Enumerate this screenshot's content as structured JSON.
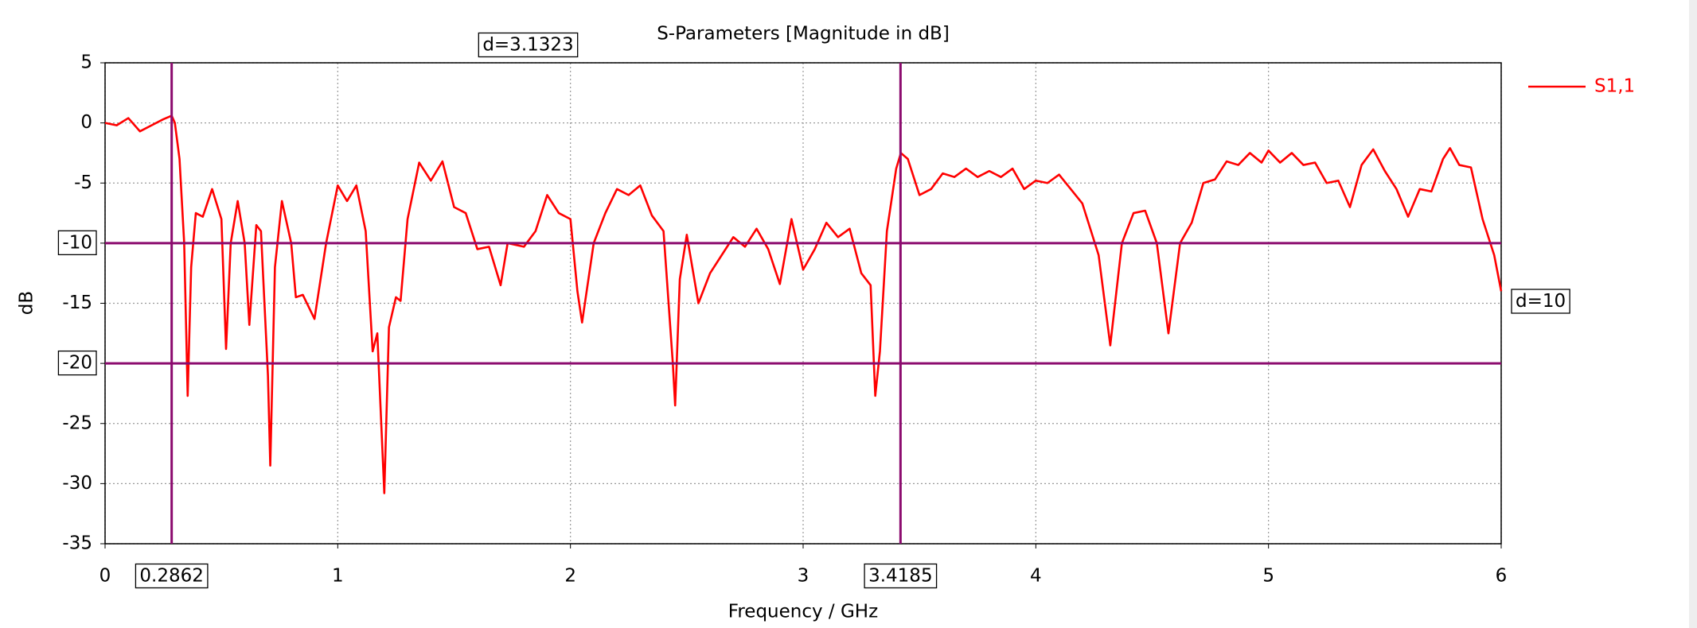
{
  "chart_data": {
    "type": "line",
    "title": "S-Parameters [Magnitude in dB]",
    "xlabel": "Frequency / GHz",
    "ylabel": "dB",
    "xlim": [
      0,
      6
    ],
    "ylim": [
      -35,
      5
    ],
    "xticks": [
      0,
      1,
      2,
      3,
      4,
      5,
      6
    ],
    "yticks": [
      5,
      0,
      -5,
      -10,
      -15,
      -20,
      -25,
      -30,
      -35
    ],
    "grid": true,
    "legend": "right",
    "x": [
      0,
      0.05,
      0.1,
      0.15,
      0.2,
      0.25,
      0.2862,
      0.3,
      0.32,
      0.34,
      0.355,
      0.37,
      0.39,
      0.42,
      0.46,
      0.5,
      0.52,
      0.54,
      0.57,
      0.6,
      0.62,
      0.65,
      0.67,
      0.7,
      0.71,
      0.73,
      0.76,
      0.8,
      0.82,
      0.85,
      0.9,
      0.95,
      1.0,
      1.04,
      1.08,
      1.12,
      1.15,
      1.17,
      1.2,
      1.22,
      1.25,
      1.27,
      1.3,
      1.35,
      1.4,
      1.45,
      1.5,
      1.55,
      1.6,
      1.65,
      1.7,
      1.73,
      1.8,
      1.85,
      1.9,
      1.95,
      2.0,
      2.03,
      2.05,
      2.1,
      2.15,
      2.2,
      2.25,
      2.3,
      2.35,
      2.4,
      2.44,
      2.45,
      2.47,
      2.5,
      2.55,
      2.6,
      2.65,
      2.7,
      2.75,
      2.8,
      2.85,
      2.9,
      2.95,
      3.0,
      3.05,
      3.1,
      3.15,
      3.2,
      3.25,
      3.29,
      3.31,
      3.33,
      3.36,
      3.4,
      3.42,
      3.45,
      3.5,
      3.55,
      3.6,
      3.65,
      3.7,
      3.75,
      3.8,
      3.85,
      3.9,
      3.95,
      4.0,
      4.05,
      4.1,
      4.15,
      4.2,
      4.27,
      4.32,
      4.37,
      4.42,
      4.47,
      4.52,
      4.57,
      4.62,
      4.67,
      4.72,
      4.77,
      4.82,
      4.87,
      4.92,
      4.97,
      5.0,
      5.05,
      5.1,
      5.15,
      5.2,
      5.25,
      5.3,
      5.35,
      5.4,
      5.45,
      5.5,
      5.55,
      5.6,
      5.65,
      5.7,
      5.75,
      5.78,
      5.82,
      5.87,
      5.92,
      5.97,
      6.0
    ],
    "series": [
      {
        "name": "S1,1",
        "color": "#ff0000",
        "values": [
          0,
          -0.2,
          0.4,
          -0.7,
          -0.2,
          0.3,
          0.6,
          0,
          -3,
          -10,
          -22.7,
          -12,
          -7.5,
          -7.8,
          -5.5,
          -8,
          -18.8,
          -10,
          -6.5,
          -10,
          -16.8,
          -8.5,
          -9,
          -21,
          -28.5,
          -12,
          -6.5,
          -10,
          -14.5,
          -14.3,
          -16.3,
          -10,
          -5.2,
          -6.5,
          -5.2,
          -9,
          -19,
          -17.5,
          -30.8,
          -17,
          -14.5,
          -14.8,
          -8,
          -3.3,
          -4.8,
          -3.2,
          -7,
          -7.5,
          -10.5,
          -10.3,
          -13.5,
          -10,
          -10.3,
          -9,
          -6,
          -7.5,
          -8,
          -14,
          -16.6,
          -10,
          -7.5,
          -5.5,
          -6,
          -5.2,
          -7.7,
          -9,
          -20,
          -23.5,
          -13,
          -9.3,
          -15,
          -12.5,
          -11,
          -9.5,
          -10.3,
          -8.8,
          -10.5,
          -13.4,
          -8,
          -12.2,
          -10.5,
          -8.3,
          -9.5,
          -8.8,
          -12.5,
          -13.5,
          -22.7,
          -19,
          -9,
          -3.8,
          -2.5,
          -3,
          -6,
          -5.5,
          -4.2,
          -4.5,
          -3.8,
          -4.5,
          -4,
          -4.5,
          -3.8,
          -5.5,
          -4.8,
          -5,
          -4.3,
          -5.5,
          -6.7,
          -11,
          -18.5,
          -10,
          -7.5,
          -7.3,
          -10,
          -17.5,
          -10,
          -8.3,
          -5,
          -4.7,
          -3.2,
          -3.5,
          -2.5,
          -3.3,
          -2.3,
          -3.3,
          -2.5,
          -3.5,
          -3.3,
          -5,
          -4.8,
          -7,
          -3.5,
          -2.2,
          -4,
          -5.5,
          -7.8,
          -5.5,
          -5.7,
          -3,
          -2.1,
          -3.5,
          -3.7,
          -8,
          -11,
          -14
        ]
      }
    ],
    "markers": {
      "color": "#8b0a6e",
      "x": [
        0.2862,
        3.4185
      ],
      "y": [
        -10,
        -20
      ],
      "x_delta_label": "d=3.1323",
      "y_delta_label": "d=10"
    }
  }
}
